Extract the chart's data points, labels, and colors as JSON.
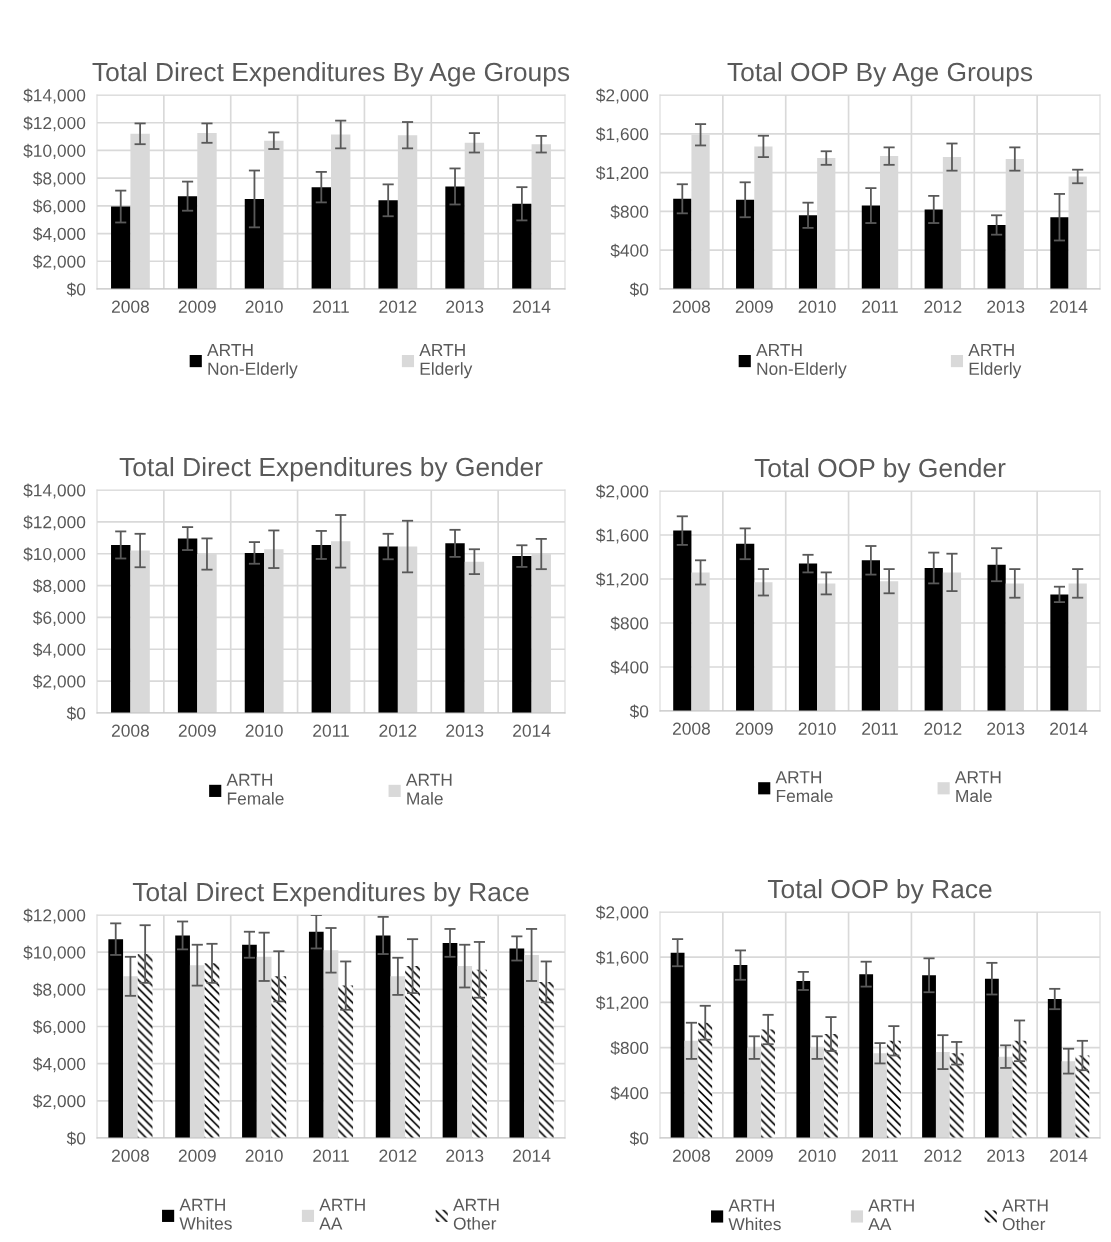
{
  "chart_data": [
    {
      "type": "bar",
      "title": "Total Direct Expenditures By Age Groups",
      "categories": [
        "2008",
        "2009",
        "2010",
        "2011",
        "2012",
        "2013",
        "2014"
      ],
      "ylim": [
        0,
        14000
      ],
      "yticks": [
        {
          "value": 0,
          "label": "$0"
        },
        {
          "value": 2000,
          "label": "$2,000"
        },
        {
          "value": 4000,
          "label": "$4,000"
        },
        {
          "value": 6000,
          "label": "$6,000"
        },
        {
          "value": 8000,
          "label": "$8,000"
        },
        {
          "value": 10000,
          "label": "$10,000"
        },
        {
          "value": 12000,
          "label": "$12,000"
        },
        {
          "value": 14000,
          "label": "$14,000"
        }
      ],
      "grid": true,
      "legend": "bottom",
      "series": [
        {
          "name": "ARTH\nNon-Elderly",
          "color": "#000000",
          "values": [
            5950,
            6700,
            6500,
            7350,
            6400,
            7400,
            6150
          ],
          "errors": [
            1150,
            1050,
            2050,
            1100,
            1150,
            1300,
            1200
          ]
        },
        {
          "name": "ARTH\nElderly",
          "color": "#d9d9d9",
          "values": [
            11200,
            11250,
            10700,
            11150,
            11100,
            10550,
            10450
          ],
          "errors": [
            750,
            700,
            600,
            1000,
            950,
            700,
            600
          ]
        }
      ]
    },
    {
      "type": "bar",
      "title": "Total OOP By Age Groups",
      "categories": [
        "2008",
        "2009",
        "2010",
        "2011",
        "2012",
        "2013",
        "2014"
      ],
      "ylim": [
        0,
        2000
      ],
      "yticks": [
        {
          "value": 0,
          "label": "$0"
        },
        {
          "value": 400,
          "label": "$400"
        },
        {
          "value": 800,
          "label": "$800"
        },
        {
          "value": 1200,
          "label": "$1,200"
        },
        {
          "value": 1600,
          "label": "$1,600"
        },
        {
          "value": 2000,
          "label": "$2,000"
        }
      ],
      "grid": true,
      "legend": "bottom",
      "series": [
        {
          "name": "ARTH\nNon-Elderly",
          "color": "#000000",
          "values": [
            930,
            920,
            760,
            860,
            820,
            660,
            740
          ],
          "errors": [
            150,
            180,
            130,
            180,
            140,
            100,
            240
          ]
        },
        {
          "name": "ARTH\nElderly",
          "color": "#d9d9d9",
          "values": [
            1590,
            1470,
            1350,
            1370,
            1360,
            1340,
            1160
          ],
          "errors": [
            110,
            110,
            70,
            90,
            140,
            120,
            70
          ]
        }
      ]
    },
    {
      "type": "bar",
      "title": "Total Direct Expenditures by Gender",
      "categories": [
        "2008",
        "2009",
        "2010",
        "2011",
        "2012",
        "2013",
        "2014"
      ],
      "ylim": [
        0,
        14000
      ],
      "yticks": [
        {
          "value": 0,
          "label": "$0"
        },
        {
          "value": 2000,
          "label": "$2,000"
        },
        {
          "value": 4000,
          "label": "$4,000"
        },
        {
          "value": 6000,
          "label": "$6,000"
        },
        {
          "value": 8000,
          "label": "$8,000"
        },
        {
          "value": 10000,
          "label": "$10,000"
        },
        {
          "value": 12000,
          "label": "$12,000"
        },
        {
          "value": 14000,
          "label": "$14,000"
        }
      ],
      "grid": true,
      "legend": "bottom",
      "series": [
        {
          "name": "ARTH\nFemale",
          "color": "#000000",
          "values": [
            10550,
            10950,
            10050,
            10550,
            10450,
            10650,
            9850
          ],
          "errors": [
            850,
            720,
            680,
            880,
            800,
            850,
            680
          ]
        },
        {
          "name": "ARTH\nMale",
          "color": "#d9d9d9",
          "values": [
            10200,
            9980,
            10280,
            10780,
            10450,
            9500,
            9980
          ],
          "errors": [
            1050,
            980,
            1180,
            1650,
            1620,
            780,
            950
          ]
        }
      ]
    },
    {
      "type": "bar",
      "title": "Total OOP by Gender",
      "categories": [
        "2008",
        "2009",
        "2010",
        "2011",
        "2012",
        "2013",
        "2014"
      ],
      "ylim": [
        0,
        2000
      ],
      "yticks": [
        {
          "value": 0,
          "label": "$0"
        },
        {
          "value": 400,
          "label": "$400"
        },
        {
          "value": 800,
          "label": "$800"
        },
        {
          "value": 1200,
          "label": "$1,200"
        },
        {
          "value": 1600,
          "label": "$1,600"
        },
        {
          "value": 2000,
          "label": "$2,000"
        }
      ],
      "grid": true,
      "legend": "bottom",
      "series": [
        {
          "name": "ARTH\nFemale",
          "color": "#000000",
          "values": [
            1640,
            1520,
            1340,
            1370,
            1300,
            1330,
            1060
          ],
          "errors": [
            130,
            140,
            80,
            130,
            140,
            150,
            70
          ]
        },
        {
          "name": "ARTH\nMale",
          "color": "#d9d9d9",
          "values": [
            1260,
            1170,
            1160,
            1180,
            1260,
            1160,
            1160
          ],
          "errors": [
            110,
            120,
            100,
            110,
            170,
            130,
            130
          ]
        }
      ]
    },
    {
      "type": "bar",
      "title": "Total Direct Expenditures by Race",
      "categories": [
        "2008",
        "2009",
        "2010",
        "2011",
        "2012",
        "2013",
        "2014"
      ],
      "ylim": [
        0,
        12000
      ],
      "yticks": [
        {
          "value": 0,
          "label": "$0"
        },
        {
          "value": 2000,
          "label": "$2,000"
        },
        {
          "value": 4000,
          "label": "$4,000"
        },
        {
          "value": 6000,
          "label": "$6,000"
        },
        {
          "value": 8000,
          "label": "$8,000"
        },
        {
          "value": 10000,
          "label": "$10,000"
        },
        {
          "value": 12000,
          "label": "$12,000"
        }
      ],
      "grid": true,
      "legend": "bottom",
      "series": [
        {
          "name": "ARTH\nWhites",
          "color": "#000000",
          "values": [
            10700,
            10900,
            10400,
            11100,
            10900,
            10500,
            10200
          ],
          "errors": [
            850,
            750,
            700,
            900,
            1000,
            750,
            650
          ]
        },
        {
          "name": "ARTH\nAA",
          "color": "#d9d9d9",
          "values": [
            8700,
            9300,
            9750,
            10100,
            8700,
            9250,
            9850
          ],
          "errors": [
            1050,
            1100,
            1300,
            1200,
            1000,
            1150,
            1400
          ]
        },
        {
          "name": "ARTH\nOther",
          "color": "#000000",
          "values": [
            9900,
            9400,
            8700,
            8200,
            9250,
            9050,
            8400
          ],
          "errors": [
            1550,
            1050,
            1350,
            1300,
            1450,
            1500,
            1100
          ]
        }
      ]
    },
    {
      "type": "bar",
      "title": "Total OOP by Race",
      "categories": [
        "2008",
        "2009",
        "2010",
        "2011",
        "2012",
        "2013",
        "2014"
      ],
      "ylim": [
        0,
        2000
      ],
      "yticks": [
        {
          "value": 0,
          "label": "$0"
        },
        {
          "value": 400,
          "label": "$400"
        },
        {
          "value": 800,
          "label": "$800"
        },
        {
          "value": 1200,
          "label": "$1,200"
        },
        {
          "value": 1600,
          "label": "$1,600"
        },
        {
          "value": 2000,
          "label": "$2,000"
        }
      ],
      "grid": true,
      "legend": "bottom",
      "series": [
        {
          "name": "ARTH\nWhites",
          "color": "#000000",
          "values": [
            1640,
            1530,
            1390,
            1450,
            1440,
            1410,
            1230
          ],
          "errors": [
            120,
            130,
            80,
            110,
            150,
            140,
            90
          ]
        },
        {
          "name": "ARTH\nAA",
          "color": "#d9d9d9",
          "values": [
            860,
            800,
            800,
            750,
            760,
            720,
            680
          ],
          "errors": [
            160,
            100,
            100,
            90,
            150,
            100,
            110
          ]
        },
        {
          "name": "ARTH\nOther",
          "color": "#000000",
          "values": [
            1020,
            960,
            920,
            860,
            750,
            860,
            730
          ],
          "errors": [
            150,
            130,
            150,
            130,
            100,
            180,
            130
          ]
        }
      ]
    }
  ]
}
